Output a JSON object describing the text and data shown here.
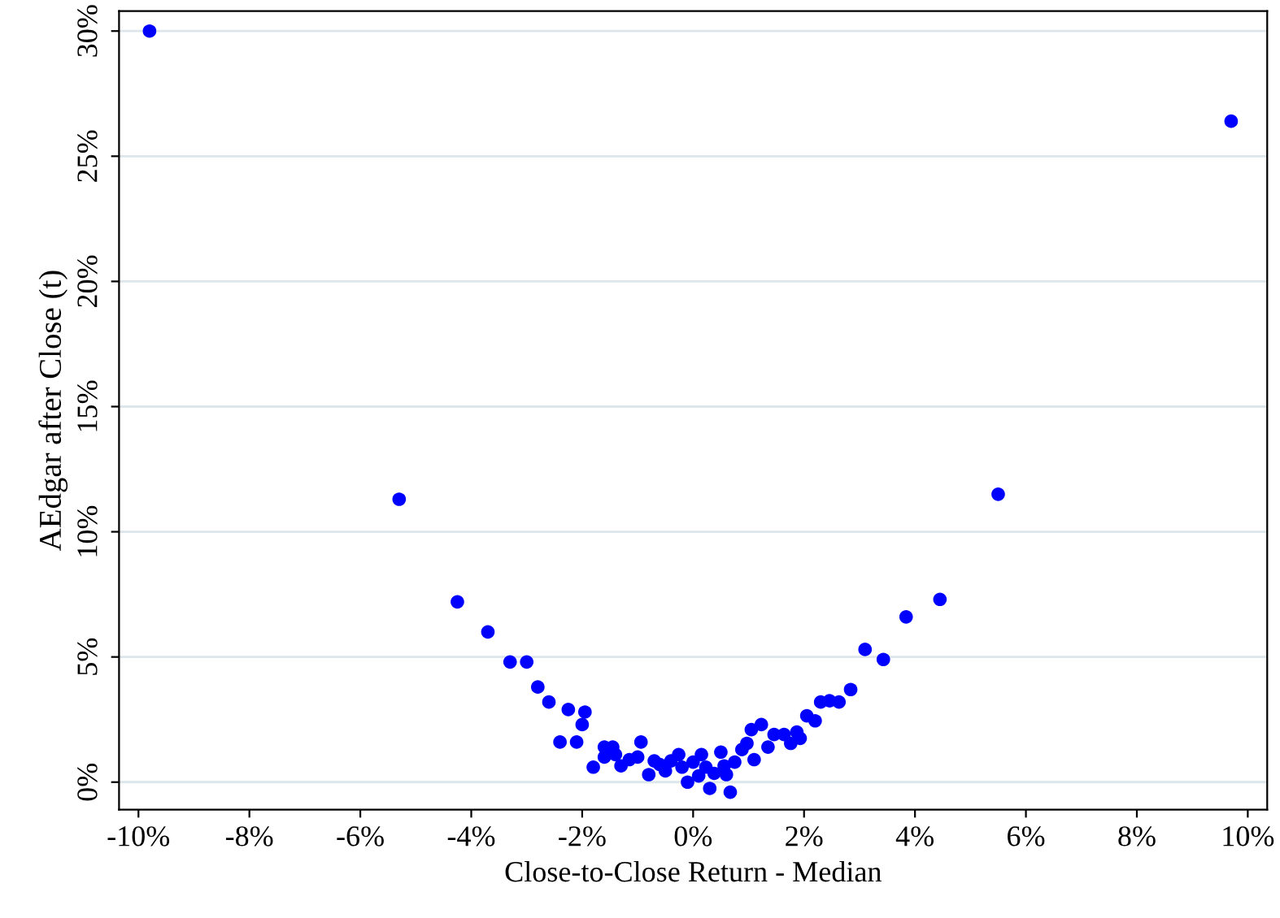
{
  "chart_data": {
    "type": "scatter",
    "xlabel": "Close-to-Close Return - Median",
    "ylabel": "AEdgar after Close (t)",
    "xlim": [
      -10.35,
      10.35
    ],
    "ylim": [
      -1.1,
      30.8
    ],
    "xticks": [
      {
        "value": -10,
        "label": "-10%"
      },
      {
        "value": -8,
        "label": "-8%"
      },
      {
        "value": -6,
        "label": "-6%"
      },
      {
        "value": -4,
        "label": "-4%"
      },
      {
        "value": -2,
        "label": "-2%"
      },
      {
        "value": 0,
        "label": "0%"
      },
      {
        "value": 2,
        "label": "2%"
      },
      {
        "value": 4,
        "label": "4%"
      },
      {
        "value": 6,
        "label": "6%"
      },
      {
        "value": 8,
        "label": "8%"
      },
      {
        "value": 10,
        "label": "10%"
      }
    ],
    "yticks": [
      {
        "value": 0,
        "label": "0%"
      },
      {
        "value": 5,
        "label": "5%"
      },
      {
        "value": 10,
        "label": "10%"
      },
      {
        "value": 15,
        "label": "15%"
      },
      {
        "value": 20,
        "label": "20%"
      },
      {
        "value": 25,
        "label": "25%"
      },
      {
        "value": 30,
        "label": "30%"
      }
    ],
    "grid": "y",
    "marker": "circle",
    "series": [
      {
        "color": "#0000ff",
        "x": [
          -9.8,
          -5.3,
          -4.25,
          -3.7,
          -3.3,
          -3.0,
          -2.8,
          -2.6,
          -2.4,
          -2.25,
          -2.1,
          -2.0,
          -1.95,
          -1.8,
          -1.6,
          -1.45,
          -1.6,
          -1.4,
          -1.3,
          -1.15,
          -1.0,
          -0.94,
          -0.8,
          -0.7,
          -0.6,
          -0.5,
          -0.4,
          -0.26,
          -0.2,
          -0.1,
          0.0,
          0.15,
          0.1,
          0.23,
          0.3,
          0.38,
          0.5,
          0.56,
          0.67,
          0.6,
          0.75,
          0.88,
          0.97,
          1.1,
          1.05,
          1.23,
          1.35,
          1.46,
          1.64,
          1.76,
          1.87,
          1.93,
          2.05,
          2.2,
          2.3,
          2.46,
          2.63,
          2.84,
          3.1,
          3.43,
          3.84,
          4.45,
          5.5,
          9.7
        ],
        "values": [
          30.0,
          11.3,
          7.2,
          6.0,
          4.8,
          4.8,
          3.8,
          3.2,
          1.6,
          2.9,
          1.6,
          2.3,
          2.8,
          0.6,
          1.4,
          1.4,
          1.0,
          1.1,
          0.65,
          0.9,
          1.0,
          1.6,
          0.3,
          0.85,
          0.7,
          0.45,
          0.85,
          1.1,
          0.6,
          0.0,
          0.8,
          1.1,
          0.25,
          0.6,
          -0.25,
          0.35,
          1.2,
          0.65,
          -0.4,
          0.3,
          0.8,
          1.3,
          1.55,
          0.9,
          2.1,
          2.3,
          1.4,
          1.9,
          1.9,
          1.55,
          2.0,
          1.75,
          2.65,
          2.45,
          3.2,
          3.25,
          3.2,
          3.7,
          5.3,
          4.9,
          6.6,
          7.3,
          11.5,
          26.4
        ]
      }
    ]
  }
}
